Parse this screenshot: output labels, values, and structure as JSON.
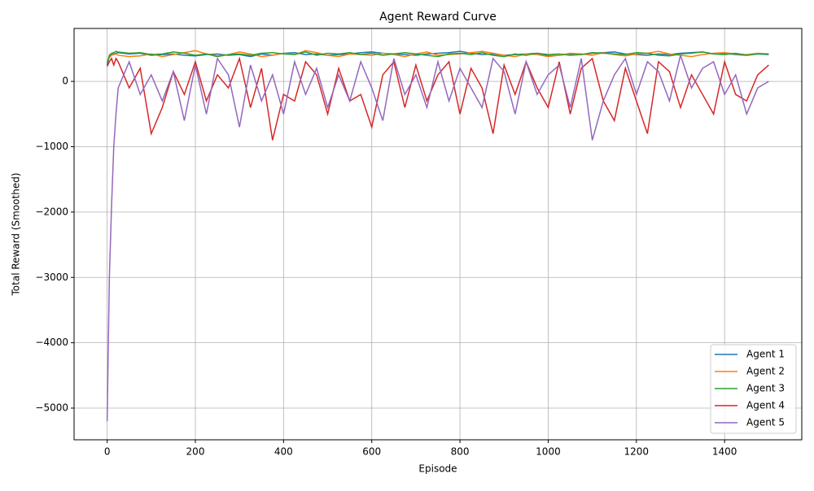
{
  "chart_data": {
    "type": "line",
    "title": "Agent Reward Curve",
    "x_label": "Episode",
    "y_label": "Total Reward (Smoothed)",
    "x": [
      0,
      5,
      10,
      15,
      20,
      25,
      50,
      75,
      100,
      125,
      150,
      175,
      200,
      225,
      250,
      275,
      300,
      325,
      350,
      375,
      400,
      425,
      450,
      475,
      500,
      525,
      550,
      575,
      600,
      625,
      650,
      675,
      700,
      725,
      750,
      775,
      800,
      825,
      850,
      875,
      900,
      925,
      950,
      975,
      1000,
      1025,
      1050,
      1075,
      1100,
      1125,
      1150,
      1175,
      1200,
      1225,
      1250,
      1275,
      1300,
      1325,
      1350,
      1375,
      1400,
      1425,
      1450,
      1475,
      1500
    ],
    "series": [
      {
        "name": "Agent 1",
        "color": "#1f77b4",
        "values": [
          250,
          380,
          410,
          420,
          430,
          440,
          420,
          430,
          400,
          410,
          420,
          400,
          390,
          410,
          420,
          400,
          410,
          380,
          420,
          400,
          430,
          440,
          410,
          420,
          400,
          410,
          420,
          440,
          450,
          430,
          420,
          410,
          400,
          420,
          430,
          440,
          460,
          430,
          410,
          420,
          400,
          410,
          420,
          430,
          390,
          400,
          420,
          410,
          430,
          440,
          450,
          420,
          410,
          400,
          420,
          410,
          430,
          440,
          450,
          420,
          430,
          410,
          400,
          420,
          410
        ]
      },
      {
        "name": "Agent 2",
        "color": "#ff7f0e",
        "values": [
          300,
          360,
          400,
          410,
          420,
          400,
          380,
          390,
          420,
          380,
          410,
          440,
          470,
          420,
          390,
          410,
          450,
          420,
          380,
          400,
          430,
          410,
          470,
          440,
          400,
          380,
          420,
          410,
          400,
          430,
          410,
          380,
          420,
          450,
          400,
          410,
          420,
          440,
          460,
          430,
          400,
          380,
          420,
          410,
          380,
          400,
          430,
          420,
          400,
          440,
          410,
          390,
          420,
          430,
          460,
          420,
          400,
          380,
          410,
          430,
          440,
          420,
          410,
          430,
          420
        ]
      },
      {
        "name": "Agent 3",
        "color": "#2ca02c",
        "values": [
          280,
          400,
          430,
          440,
          460,
          450,
          430,
          440,
          410,
          420,
          450,
          430,
          400,
          420,
          380,
          410,
          420,
          400,
          430,
          440,
          420,
          410,
          450,
          400,
          430,
          420,
          440,
          410,
          430,
          400,
          420,
          440,
          420,
          400,
          380,
          420,
          430,
          410,
          440,
          400,
          380,
          420,
          400,
          430,
          410,
          420,
          400,
          410,
          440,
          430,
          420,
          410,
          440,
          430,
          400,
          390,
          420,
          430,
          450,
          420,
          410,
          430,
          400,
          420,
          420
        ]
      },
      {
        "name": "Agent 4",
        "color": "#d62728",
        "values": [
          230,
          300,
          350,
          250,
          350,
          300,
          -100,
          200,
          -800,
          -400,
          150,
          -200,
          300,
          -300,
          100,
          -100,
          350,
          -400,
          200,
          -900,
          -200,
          -300,
          300,
          100,
          -500,
          200,
          -300,
          -200,
          -700,
          100,
          300,
          -400,
          250,
          -300,
          100,
          300,
          -500,
          200,
          -100,
          -800,
          250,
          -200,
          300,
          -100,
          -400,
          300,
          -500,
          200,
          350,
          -300,
          -600,
          200,
          -300,
          -800,
          300,
          150,
          -400,
          100,
          -200,
          -500,
          300,
          -200,
          -300,
          100,
          250
        ]
      },
      {
        "name": "Agent 5",
        "color": "#9467bd",
        "values": [
          -5200,
          -3000,
          -1900,
          -1000,
          -500,
          -100,
          300,
          -200,
          100,
          -300,
          150,
          -600,
          250,
          -500,
          350,
          100,
          -700,
          250,
          -300,
          100,
          -500,
          300,
          -200,
          200,
          -400,
          100,
          -300,
          300,
          -100,
          -600,
          350,
          -200,
          100,
          -400,
          300,
          -300,
          200,
          -100,
          -400,
          350,
          150,
          -500,
          300,
          -200,
          100,
          250,
          -400,
          350,
          -900,
          -300,
          100,
          350,
          -200,
          300,
          150,
          -300,
          400,
          -100,
          200,
          300,
          -200,
          100,
          -500,
          -100,
          0
        ]
      }
    ],
    "xlim": [
      -75,
      1575
    ],
    "ylim": [
      -5485,
      810
    ],
    "xticks": [
      0,
      200,
      400,
      600,
      800,
      1000,
      1200,
      1400
    ],
    "yticks": [
      {
        "value": -5000,
        "label": "−5000"
      },
      {
        "value": -4000,
        "label": "−4000"
      },
      {
        "value": -3000,
        "label": "−3000"
      },
      {
        "value": -2000,
        "label": "−2000"
      },
      {
        "value": -1000,
        "label": "−1000"
      },
      0
    ],
    "grid": true,
    "legend": "lower right"
  }
}
